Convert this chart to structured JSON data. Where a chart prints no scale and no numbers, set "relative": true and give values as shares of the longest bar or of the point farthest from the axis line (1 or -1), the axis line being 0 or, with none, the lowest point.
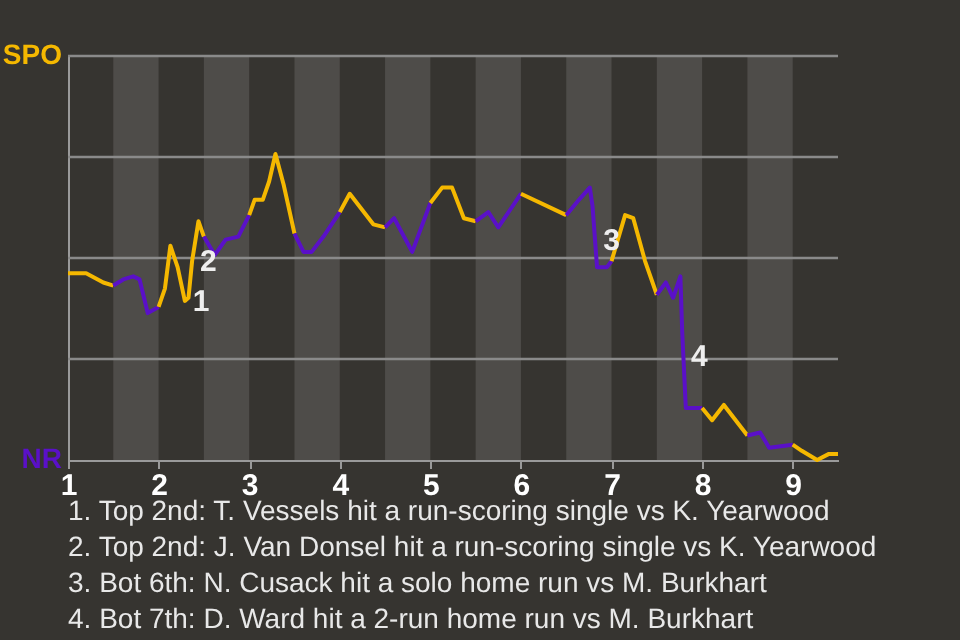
{
  "chart_data": {
    "type": "line",
    "relative": true,
    "marker": "none",
    "line_style": "solid",
    "xlim": [
      1,
      9.5
    ],
    "xticks": [
      1,
      2,
      3,
      4,
      5,
      6,
      7,
      8,
      9
    ],
    "bands": [
      {
        "axis": "x",
        "from": 1.5,
        "to": 2,
        "color": "#4e4c49"
      },
      {
        "axis": "x",
        "from": 2.5,
        "to": 3,
        "color": "#4e4c49"
      },
      {
        "axis": "x",
        "from": 3.5,
        "to": 4,
        "color": "#4e4c49"
      },
      {
        "axis": "x",
        "from": 4.5,
        "to": 5,
        "color": "#4e4c49"
      },
      {
        "axis": "x",
        "from": 5.5,
        "to": 6,
        "color": "#4e4c49"
      },
      {
        "axis": "x",
        "from": 6.5,
        "to": 7,
        "color": "#4e4c49"
      },
      {
        "axis": "x",
        "from": 7.5,
        "to": 8,
        "color": "#4e4c49"
      },
      {
        "axis": "x",
        "from": 8.5,
        "to": 9,
        "color": "#4e4c49"
      }
    ],
    "ref_lines": [
      {
        "axis": "y",
        "value": 0.33,
        "color": "#8a8a8a"
      },
      {
        "axis": "y",
        "value": 0.66,
        "color": "#8a8a8a"
      },
      {
        "axis": "y",
        "value": 0.99,
        "color": "#8a8a8a"
      },
      {
        "axis": "y",
        "value": 1.32,
        "color": "#8a8a8a"
      }
    ],
    "series": [
      {
        "color": "#f5b800",
        "x": [
          1,
          1.2,
          1.39,
          1.5
        ],
        "values": [
          0.61,
          0.61,
          0.58,
          0.57
        ]
      },
      {
        "color": "#5a10c8",
        "x": [
          1.5,
          1.61,
          1.72,
          1.79,
          1.88,
          2
        ],
        "values": [
          0.57,
          0.59,
          0.6,
          0.59,
          0.48,
          0.5
        ]
      },
      {
        "color": "#f5b800",
        "x": [
          2,
          2.07,
          2.13,
          2.21,
          2.29,
          2.33,
          2.37,
          2.44,
          2.5
        ],
        "values": [
          0.5,
          0.56,
          0.7,
          0.63,
          0.52,
          0.53,
          0.65,
          0.78,
          0.73
        ]
      },
      {
        "color": "#5a10c8",
        "x": [
          2.5,
          2.62,
          2.74,
          2.88,
          3
        ],
        "values": [
          0.73,
          0.67,
          0.72,
          0.73,
          0.8
        ]
      },
      {
        "color": "#f5b800",
        "x": [
          3,
          3.06,
          3.15,
          3.22,
          3.29,
          3.38,
          3.5
        ],
        "values": [
          0.8,
          0.85,
          0.85,
          0.91,
          1.0,
          0.9,
          0.74
        ]
      },
      {
        "color": "#5a10c8",
        "x": [
          3.5,
          3.6,
          3.69,
          3.82,
          4
        ],
        "values": [
          0.74,
          0.68,
          0.68,
          0.73,
          0.81
        ]
      },
      {
        "color": "#f5b800",
        "x": [
          4,
          4.11,
          4.37,
          4.5
        ],
        "values": [
          0.81,
          0.87,
          0.77,
          0.76
        ]
      },
      {
        "color": "#5a10c8",
        "x": [
          4.5,
          4.6,
          4.8,
          5
        ],
        "values": [
          0.76,
          0.79,
          0.68,
          0.84
        ]
      },
      {
        "color": "#f5b800",
        "x": [
          5,
          5.13,
          5.24,
          5.37,
          5.5
        ],
        "values": [
          0.84,
          0.89,
          0.89,
          0.79,
          0.78
        ]
      },
      {
        "color": "#5a10c8",
        "x": [
          5.5,
          5.64,
          5.75,
          6
        ],
        "values": [
          0.78,
          0.81,
          0.76,
          0.87
        ]
      },
      {
        "color": "#f5b800",
        "x": [
          6,
          6.5
        ],
        "values": [
          0.87,
          0.8
        ]
      },
      {
        "color": "#5a10c8",
        "x": [
          6.5,
          6.64,
          6.76,
          6.79,
          6.84,
          6.95,
          7
        ],
        "values": [
          0.8,
          0.85,
          0.89,
          0.83,
          0.63,
          0.63,
          0.65
        ]
      },
      {
        "color": "#f5b800",
        "x": [
          7,
          7.15,
          7.24,
          7.37,
          7.5
        ],
        "values": [
          0.65,
          0.8,
          0.79,
          0.65,
          0.54
        ]
      },
      {
        "color": "#5a10c8",
        "x": [
          7.5,
          7.6,
          7.68,
          7.76,
          7.78,
          7.82,
          8
        ],
        "values": [
          0.54,
          0.58,
          0.53,
          0.6,
          0.42,
          0.17,
          0.17
        ]
      },
      {
        "color": "#f5b800",
        "x": [
          8,
          8.11,
          8.24,
          8.5
        ],
        "values": [
          0.17,
          0.13,
          0.18,
          0.08
        ]
      },
      {
        "color": "#5a10c8",
        "x": [
          8.5,
          8.64,
          8.74,
          9
        ],
        "values": [
          0.08,
          0.09,
          0.04,
          0.05
        ]
      },
      {
        "color": "#f5b800",
        "x": [
          9,
          9.1,
          9.27,
          9.4,
          9.5
        ],
        "values": [
          0.05,
          0.03,
          0.0,
          0.02,
          0.02
        ]
      }
    ],
    "annotations": [
      {
        "text": "1",
        "x": 2.29,
        "y": 0.52
      },
      {
        "text": "2",
        "x": 2.37,
        "y": 0.65
      },
      {
        "text": "3",
        "x": 6.82,
        "y": 0.72
      },
      {
        "text": "4",
        "x": 7.79,
        "y": 0.34
      },
      "SPO",
      "NR",
      "1. Top 2nd: T. Vessels hit a run-scoring single vs K. Yearwood",
      "2. Top 2nd: J. Van Donsel hit a run-scoring single vs K. Yearwood",
      "3. Bot 6th: N. Cusack hit a solo home run vs M. Burkhart",
      "4. Bot 7th: D. Ward hit a 2-run home run vs M. Burkhart"
    ]
  }
}
